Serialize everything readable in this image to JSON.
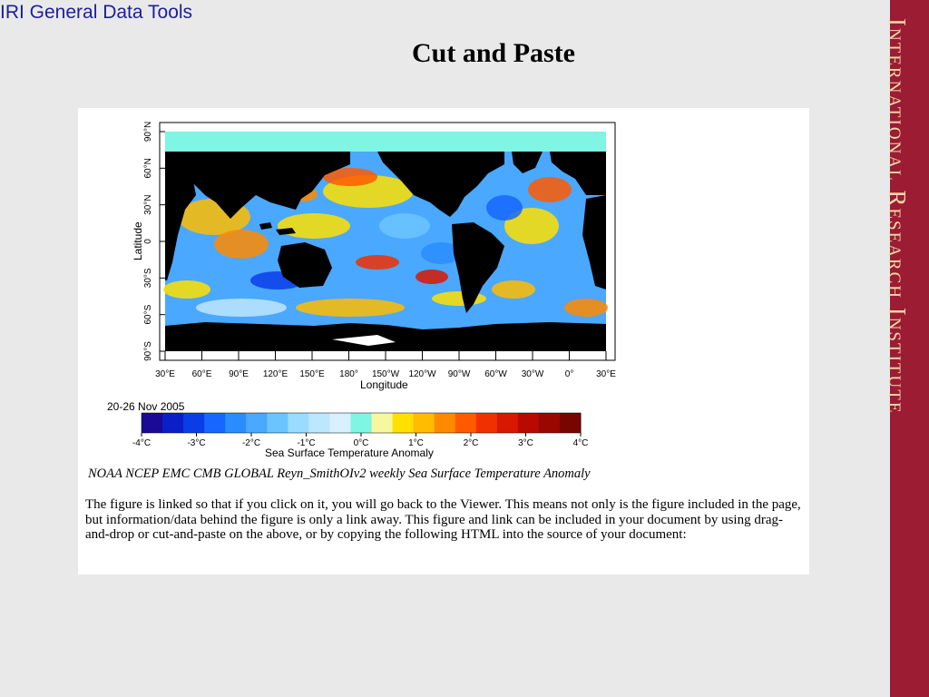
{
  "header": {
    "left_title": "IRI General Data Tools"
  },
  "slide": {
    "title": "Cut and Paste"
  },
  "sidebar": {
    "text": "International Research Institute"
  },
  "figure": {
    "y_axis_label": "Latitude",
    "x_axis_label": "Longitude",
    "lat_ticks": [
      "90°N",
      "60°N",
      "30°N",
      "0",
      "30°S",
      "60°S",
      "90°S"
    ],
    "lon_ticks": [
      "30°E",
      "60°E",
      "90°E",
      "120°E",
      "150°E",
      "180°",
      "150°W",
      "120°W",
      "90°W",
      "60°W",
      "30°W",
      "0°",
      "30°E"
    ],
    "date_label": "20-26 Nov 2005",
    "colorbar_ticks": [
      "-4°C",
      "-3°C",
      "-2°C",
      "-1°C",
      "0°C",
      "1°C",
      "2°C",
      "3°C",
      "4°C"
    ],
    "colorbar_label": "Sea Surface Temperature Anomaly",
    "colors": {
      "land": "#000000",
      "ice": "#7ff5e3",
      "ocean_base": "#4aa8ff",
      "colorbar": [
        "#1a0a96",
        "#0b1fc8",
        "#0a3de8",
        "#1666ff",
        "#2a8cff",
        "#4aa8ff",
        "#6cc4ff",
        "#9adcff",
        "#bde6ff",
        "#d8f0ff",
        "#7ff5e3",
        "#f7f7a0",
        "#ffe000",
        "#ffbc00",
        "#ff8a00",
        "#ff5a00",
        "#f03000",
        "#d81800",
        "#b80a00",
        "#980800",
        "#780600"
      ]
    }
  },
  "dataset_title": "NOAA NCEP EMC CMB GLOBAL Reyn_SmithOIv2 weekly Sea Surface Temperature Anomaly",
  "description": "The figure is linked so that if you click on it, you will go back to the Viewer. This means not only is the figure included in the page, but information/data behind the figure is only a link away. This figure and link can be included in your document by using drag-and-drop or cut-and-paste on the above, or by copying the following HTML into the source of your document:"
}
